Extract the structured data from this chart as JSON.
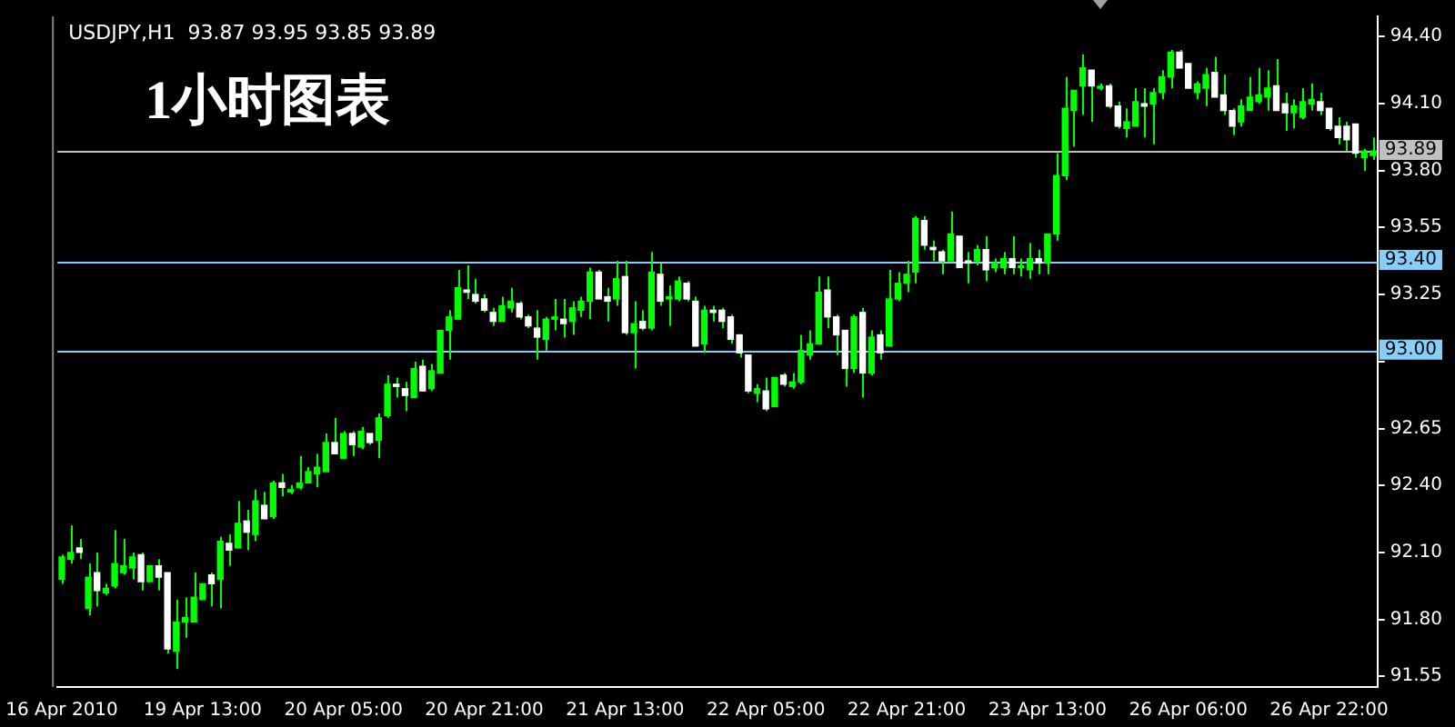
{
  "chart_data": {
    "type": "candlestick",
    "title": "USDJPY,H1  93.87 93.95 93.85 93.89",
    "annotations": [
      "1小时图表"
    ],
    "color": "#00ff00",
    "colors": [
      "#00ff00",
      "#00ff00",
      "#ffffff",
      "#00ff00",
      "#ffffff",
      "#00ff00",
      "#00ff00",
      "#00ff00",
      "#00ff00",
      "#ffffff",
      "#00ff00",
      "#ffffff",
      "#ffffff",
      "#00ff00",
      "#00ff00",
      "#00ff00",
      "#00ff00",
      "#ffffff",
      "#00ff00",
      "#ffffff",
      "#00ff00",
      "#ffffff",
      "#00ff00",
      "#ffffff",
      "#00ff00",
      "#ffffff",
      "#00ff00",
      "#00ff00",
      "#00ff00",
      "#00ff00",
      "#00ff00",
      "#ffffff",
      "#00ff00",
      "#ffffff",
      "#00ff00",
      "#ffffff",
      "#00ff00",
      "#00ff00",
      "#ffffff",
      "#ffffff",
      "#00ff00",
      "#ffffff",
      "#00ff00",
      "#00ff00",
      "#00ff00",
      "#00ff00",
      "#ffffff",
      "#ffffff",
      "#ffffff",
      "#ffffff",
      "#00ff00",
      "#00ff00",
      "#ffffff",
      "#ffffff",
      "#ffffff",
      "#00ff00",
      "#00ff00",
      "#ffffff",
      "#00ff00",
      "#00ff00",
      "#00ff00",
      "#ffffff",
      "#ffffff",
      "#00ff00",
      "#ffffff",
      "#00ff00",
      "#ffffff",
      "#00ff00",
      "#ffffff",
      "#00ff00",
      "#00ff00",
      "#ffffff",
      "#ffffff",
      "#00ff00",
      "#ffffff",
      "#ffffff",
      "#ffffff",
      "#ffffff",
      "#ffffff",
      "#00ff00",
      "#ffffff",
      "#00ff00",
      "#ffffff",
      "#00ff00",
      "#00ff00",
      "#00ff00",
      "#00ff00",
      "#ffffff",
      "#ffffff",
      "#ffffff",
      "#00ff00",
      "#ffffff",
      "#00ff00",
      "#ffffff",
      "#00ff00",
      "#00ff00",
      "#00ff00",
      "#00ff00",
      "#ffffff",
      "#ffffff",
      "#ffffff",
      "#00ff00",
      "#ffffff",
      "#ffffff",
      "#00ff00",
      "#ffffff",
      "#00ff00",
      "#00ff00",
      "#ffffff",
      "#00ff00",
      "#00ff00",
      "#ffffff",
      "#00ff00",
      "#00ff00",
      "#00ff00",
      "#00ff00",
      "#00ff00",
      "#ffffff",
      "#00ff00",
      "#ffffff",
      "#ffffff",
      "#00ff00",
      "#00ff00",
      "#ffffff",
      "#00ff00",
      "#00ff00",
      "#00ff00",
      "#ffffff",
      "#ffffff",
      "#00ff00",
      "#00ff00",
      "#ffffff",
      "#ffffff",
      "#ffffff",
      "#00ff00",
      "#00ff00",
      "#00ff00",
      "#00ff00",
      "#ffffff",
      "#ffffff",
      "#00ff00",
      "#00ff00",
      "#00ff00",
      "#ffffff",
      "#ffffff",
      "#ffffff",
      "#ffffff",
      "#ffffff",
      "#00ff00",
      "#00ff00"
    ],
    "categories": [
      "16 Apr 2010",
      null,
      null,
      null,
      null,
      null,
      null,
      null,
      null,
      null,
      null,
      null,
      null,
      null,
      null,
      null,
      "19 Apr 13:00",
      null,
      null,
      null,
      null,
      null,
      null,
      null,
      null,
      null,
      null,
      null,
      null,
      null,
      null,
      null,
      "20 Apr 05:00",
      null,
      null,
      null,
      null,
      null,
      null,
      null,
      null,
      null,
      null,
      null,
      null,
      null,
      null,
      null,
      "20 Apr 21:00",
      null,
      null,
      null,
      null,
      null,
      null,
      null,
      null,
      null,
      null,
      null,
      null,
      null,
      null,
      null,
      "21 Apr 13:00",
      null,
      null,
      null,
      null,
      null,
      null,
      null,
      null,
      null,
      null,
      null,
      null,
      null,
      null,
      null,
      "22 Apr 05:00",
      null,
      null,
      null,
      null,
      null,
      null,
      null,
      null,
      null,
      null,
      null,
      null,
      null,
      null,
      null,
      "22 Apr 21:00",
      null,
      null,
      null,
      null,
      null,
      null,
      null,
      null,
      null,
      null,
      null,
      null,
      null,
      null,
      null,
      "23 Apr 13:00",
      null,
      null,
      null,
      null,
      null,
      null,
      null,
      null,
      null,
      null,
      null,
      null,
      null,
      null,
      null,
      "26 Apr 06:00",
      null,
      null,
      null,
      null,
      null,
      null,
      null,
      null,
      null,
      null,
      null,
      null,
      null,
      null,
      null,
      "26 Apr 22:00",
      null,
      null,
      null,
      null,
      null
    ],
    "ohlc": [
      [
        91.98,
        92.09,
        91.96,
        92.08
      ],
      [
        92.07,
        92.22,
        92.05,
        92.1
      ],
      [
        92.12,
        92.16,
        92.07,
        92.1
      ],
      [
        91.85,
        92.05,
        91.82,
        91.99
      ],
      [
        92.01,
        92.1,
        91.86,
        91.93
      ],
      [
        91.92,
        91.96,
        91.91,
        91.94
      ],
      [
        91.95,
        92.2,
        91.94,
        92.05
      ],
      [
        92.01,
        92.16,
        92.0,
        92.04
      ],
      [
        92.03,
        92.1,
        91.98,
        92.08
      ],
      [
        92.09,
        92.1,
        91.93,
        91.97
      ],
      [
        91.97,
        92.04,
        91.97,
        92.04
      ],
      [
        92.04,
        92.07,
        91.93,
        91.99
      ],
      [
        92.01,
        92.01,
        91.65,
        91.67
      ],
      [
        91.66,
        91.89,
        91.58,
        91.79
      ],
      [
        91.79,
        91.9,
        91.72,
        91.81
      ],
      [
        91.79,
        92.01,
        91.79,
        91.9
      ],
      [
        91.89,
        91.96,
        91.89,
        91.96
      ],
      [
        92.0,
        92.01,
        91.86,
        91.96
      ],
      [
        91.98,
        92.17,
        91.85,
        92.15
      ],
      [
        92.14,
        92.18,
        92.04,
        92.11
      ],
      [
        92.12,
        92.33,
        92.12,
        92.23
      ],
      [
        92.24,
        92.29,
        92.11,
        92.19
      ],
      [
        92.18,
        92.38,
        92.15,
        92.33
      ],
      [
        92.31,
        92.37,
        92.25,
        92.25
      ],
      [
        92.26,
        92.42,
        92.25,
        92.41
      ],
      [
        92.41,
        92.45,
        92.35,
        92.39
      ],
      [
        92.37,
        92.4,
        92.36,
        92.38
      ],
      [
        92.39,
        92.53,
        92.38,
        92.41
      ],
      [
        92.41,
        92.48,
        92.41,
        92.46
      ],
      [
        92.45,
        92.54,
        92.39,
        92.48
      ],
      [
        92.46,
        92.63,
        92.46,
        92.59
      ],
      [
        92.59,
        92.7,
        92.54,
        92.54
      ],
      [
        92.52,
        92.64,
        92.52,
        92.63
      ],
      [
        92.63,
        92.64,
        92.53,
        92.58
      ],
      [
        92.57,
        92.66,
        92.56,
        92.64
      ],
      [
        92.63,
        92.63,
        92.58,
        92.59
      ],
      [
        92.6,
        92.72,
        92.52,
        92.7
      ],
      [
        92.71,
        92.89,
        92.7,
        92.85
      ],
      [
        92.85,
        92.88,
        92.79,
        92.84
      ],
      [
        92.83,
        92.86,
        92.73,
        92.8
      ],
      [
        92.79,
        92.95,
        92.79,
        92.92
      ],
      [
        92.93,
        92.96,
        92.82,
        92.82
      ],
      [
        92.83,
        92.94,
        92.82,
        92.91
      ],
      [
        92.9,
        93.09,
        92.9,
        93.09
      ],
      [
        93.09,
        93.18,
        92.96,
        93.15
      ],
      [
        93.14,
        93.36,
        93.14,
        93.28
      ],
      [
        93.27,
        93.38,
        93.23,
        93.26
      ],
      [
        93.25,
        93.32,
        93.21,
        93.22
      ],
      [
        93.23,
        93.25,
        93.17,
        93.18
      ],
      [
        93.17,
        93.19,
        93.11,
        93.13
      ],
      [
        93.13,
        93.24,
        93.13,
        93.2
      ],
      [
        93.19,
        93.28,
        93.17,
        93.22
      ],
      [
        93.21,
        93.22,
        93.14,
        93.15
      ],
      [
        93.15,
        93.16,
        93.1,
        93.11
      ],
      [
        93.1,
        93.18,
        92.96,
        93.06
      ],
      [
        93.05,
        93.15,
        93.0,
        93.14
      ],
      [
        93.14,
        93.23,
        93.09,
        93.15
      ],
      [
        93.14,
        93.23,
        93.06,
        93.12
      ],
      [
        93.13,
        93.22,
        93.07,
        93.19
      ],
      [
        93.18,
        93.24,
        93.15,
        93.22
      ],
      [
        93.22,
        93.37,
        93.14,
        93.35
      ],
      [
        93.35,
        93.36,
        93.23,
        93.23
      ],
      [
        93.24,
        93.28,
        93.13,
        93.22
      ],
      [
        93.23,
        93.4,
        93.2,
        93.32
      ],
      [
        93.33,
        93.4,
        93.07,
        93.08
      ],
      [
        93.08,
        93.22,
        92.92,
        93.12
      ],
      [
        93.13,
        93.18,
        93.09,
        93.1
      ],
      [
        93.1,
        93.44,
        93.09,
        93.35
      ],
      [
        93.34,
        93.39,
        93.2,
        93.22
      ],
      [
        93.23,
        93.29,
        93.11,
        93.24
      ],
      [
        93.23,
        93.33,
        93.22,
        93.31
      ],
      [
        93.3,
        93.31,
        93.22,
        93.23
      ],
      [
        93.22,
        93.24,
        93.02,
        93.02
      ],
      [
        93.03,
        93.2,
        92.99,
        93.18
      ],
      [
        93.18,
        93.2,
        93.13,
        93.17
      ],
      [
        93.18,
        93.19,
        93.1,
        93.13
      ],
      [
        93.15,
        93.16,
        93.03,
        93.05
      ],
      [
        93.07,
        93.07,
        92.97,
        92.99
      ],
      [
        92.98,
        92.98,
        92.81,
        92.82
      ],
      [
        92.81,
        92.85,
        92.77,
        92.83
      ],
      [
        92.82,
        92.88,
        92.73,
        92.74
      ],
      [
        92.75,
        92.88,
        92.75,
        92.88
      ],
      [
        92.89,
        92.9,
        92.84,
        92.85
      ],
      [
        92.84,
        92.9,
        92.83,
        92.86
      ],
      [
        92.86,
        93.07,
        92.85,
        93.0
      ],
      [
        92.98,
        93.09,
        92.96,
        93.03
      ],
      [
        93.03,
        93.33,
        93.03,
        93.26
      ],
      [
        93.27,
        93.33,
        93.1,
        93.15
      ],
      [
        93.15,
        93.16,
        92.98,
        93.07
      ],
      [
        93.09,
        93.09,
        92.84,
        92.92
      ],
      [
        92.92,
        93.16,
        92.9,
        93.15
      ],
      [
        93.17,
        93.19,
        92.79,
        92.9
      ],
      [
        92.9,
        93.09,
        92.89,
        93.06
      ],
      [
        93.07,
        93.09,
        92.96,
        92.99
      ],
      [
        93.02,
        93.36,
        93.02,
        93.23
      ],
      [
        93.23,
        93.35,
        93.22,
        93.3
      ],
      [
        93.3,
        93.4,
        93.26,
        93.34
      ],
      [
        93.35,
        93.6,
        93.3,
        93.59
      ],
      [
        93.58,
        93.6,
        93.45,
        93.47
      ],
      [
        93.46,
        93.49,
        93.4,
        93.45
      ],
      [
        93.44,
        93.45,
        93.34,
        93.4
      ],
      [
        93.4,
        93.62,
        93.4,
        93.52
      ],
      [
        93.51,
        93.51,
        93.37,
        93.37
      ],
      [
        93.4,
        93.44,
        93.3,
        93.39
      ],
      [
        93.4,
        93.47,
        93.38,
        93.45
      ],
      [
        93.45,
        93.51,
        93.31,
        93.36
      ],
      [
        93.37,
        93.41,
        93.35,
        93.39
      ],
      [
        93.37,
        93.44,
        93.34,
        93.41
      ],
      [
        93.41,
        93.51,
        93.34,
        93.37
      ],
      [
        93.37,
        93.41,
        93.33,
        93.37
      ],
      [
        93.36,
        93.48,
        93.32,
        93.41
      ],
      [
        93.41,
        93.45,
        93.34,
        93.39
      ],
      [
        93.39,
        93.52,
        93.34,
        93.52
      ],
      [
        93.52,
        93.88,
        93.49,
        93.78
      ],
      [
        93.78,
        94.22,
        93.76,
        94.08
      ],
      [
        94.07,
        94.16,
        93.91,
        94.16
      ],
      [
        94.18,
        94.32,
        94.05,
        94.26
      ],
      [
        94.25,
        94.25,
        94.02,
        94.18
      ],
      [
        94.17,
        94.19,
        94.16,
        94.17
      ],
      [
        94.18,
        94.19,
        94.08,
        94.09
      ],
      [
        94.09,
        94.11,
        93.99,
        94.0
      ],
      [
        93.99,
        94.08,
        93.95,
        94.02
      ],
      [
        94.0,
        94.17,
        94.0,
        94.11
      ],
      [
        94.1,
        94.17,
        93.95,
        94.09
      ],
      [
        94.1,
        94.17,
        93.92,
        94.15
      ],
      [
        94.15,
        94.25,
        94.12,
        94.22
      ],
      [
        94.22,
        94.34,
        94.17,
        94.33
      ],
      [
        94.33,
        94.34,
        94.26,
        94.26
      ],
      [
        94.28,
        94.28,
        94.17,
        94.17
      ],
      [
        94.15,
        94.2,
        94.12,
        94.19
      ],
      [
        94.17,
        94.26,
        94.09,
        94.23
      ],
      [
        94.24,
        94.31,
        94.13,
        94.13
      ],
      [
        94.14,
        94.23,
        94.05,
        94.07
      ],
      [
        94.07,
        94.08,
        93.96,
        94.0
      ],
      [
        94.02,
        94.12,
        94.0,
        94.09
      ],
      [
        94.07,
        94.22,
        94.07,
        94.13
      ],
      [
        94.11,
        94.26,
        94.1,
        94.14
      ],
      [
        94.13,
        94.25,
        94.07,
        94.17
      ],
      [
        94.18,
        94.3,
        94.07,
        94.07
      ],
      [
        94.1,
        94.15,
        93.98,
        94.06
      ],
      [
        94.06,
        94.12,
        93.99,
        94.09
      ],
      [
        94.04,
        94.17,
        94.03,
        94.11
      ],
      [
        94.1,
        94.19,
        94.07,
        94.12
      ],
      [
        94.11,
        94.15,
        94.05,
        94.07
      ],
      [
        94.08,
        94.08,
        93.98,
        93.99
      ],
      [
        94.0,
        94.04,
        93.92,
        93.95
      ],
      [
        94.0,
        94.02,
        93.89,
        93.94
      ],
      [
        94.01,
        94.01,
        93.86,
        93.88
      ],
      [
        93.86,
        93.9,
        93.8,
        93.89
      ],
      [
        93.87,
        93.95,
        93.85,
        93.89
      ]
    ],
    "ylim": [
      91.5,
      94.49
    ],
    "yticks": [
      {
        "value": 91.55,
        "label": "91.55"
      },
      {
        "value": 91.8,
        "label": "91.80"
      },
      {
        "value": 92.1,
        "label": "92.10"
      },
      {
        "value": 92.4,
        "label": "92.40"
      },
      {
        "value": 92.65,
        "label": "92.65"
      },
      {
        "value": 92.95,
        "label": null
      },
      {
        "value": 93.25,
        "label": "93.25"
      },
      {
        "value": 93.55,
        "label": "93.55"
      },
      {
        "value": 93.8,
        "label": "93.80"
      },
      {
        "value": 94.1,
        "label": "94.10"
      },
      {
        "value": 94.4,
        "label": "94.40"
      }
    ],
    "ref_lines": [
      {
        "axis": "y",
        "value": 93.89,
        "label": "93.89",
        "color": "#c0c0c0"
      },
      {
        "axis": "y",
        "value": 93.4,
        "label": "93.40",
        "color": "#87cefa"
      },
      {
        "axis": "y",
        "value": 93.0,
        "label": "93.00",
        "color": "#87cefa"
      }
    ]
  }
}
